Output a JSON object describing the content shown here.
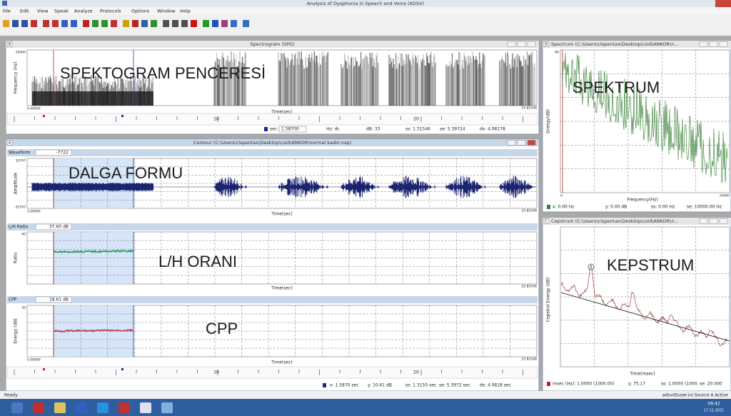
{
  "window": {
    "title": "Analysis of Dysphonia in Speech and Voice (ADSV)"
  },
  "menu": [
    "File",
    "Edit",
    "View",
    "Speak",
    "Analyze",
    "Protocols",
    "Options",
    "Window",
    "Help"
  ],
  "spectrogram": {
    "label": "B",
    "title": "Spectrogram (SPG)",
    "overlay": "SPEKTOGRAM PENCERESİ",
    "y_label": "Frequency (Hz)",
    "y_max": "10000",
    "x_start": "0.00000",
    "x_label": "Time(sec)",
    "x_end": "25.82548",
    "ruler": [
      "10",
      "20"
    ],
    "status": [
      "sec:",
      "1.58700",
      "Hz: dc",
      "dB: 33",
      "ss: 1.31546",
      "se: 5.39724",
      "ds: 4.08178"
    ]
  },
  "contour": {
    "label": "A",
    "title": "Contour (C:\\Users\\clspentax\\Desktop\\csid\\ANKOR\\normal kadın.nsp)",
    "panels": [
      {
        "name": "Waveform",
        "value": "-7722",
        "y_label": "Amplitude",
        "y_max": "32767",
        "y_min": "-32767",
        "x_start": "0.00000",
        "x_label": "Time(sec)",
        "x_end": "25.82548",
        "overlay": "DALGA FORMU"
      },
      {
        "name": "L/H Ratio",
        "value": "37.60 dB",
        "y_label": "Ratio",
        "y_max": "60",
        "x_label": "Time(sec)",
        "x_end": "25.82548",
        "overlay": "L/H ORANI"
      },
      {
        "name": "CPP",
        "value": "18.61 dB",
        "y_label": "Energy (dB)",
        "y_max": "20",
        "x_start": "0.00000",
        "x_label": "Time(sec)",
        "x_end": "25.82548",
        "overlay": "CPP"
      }
    ],
    "ruler": [
      "10",
      "20"
    ],
    "status": [
      "x: 1.5870 sec",
      "y: 10.61 dB",
      "ss: 1.3155 sec",
      "se: 5.3972 sec",
      "ds: 4.0818 sec"
    ]
  },
  "spectrum": {
    "label": "B",
    "title": "Spectrum (C:\\Users\\clspentax\\Desktop\\csid\\ANKOR\\n...",
    "y_max": "80",
    "y_label": "Energy(dB)",
    "x_start": "0",
    "x_label": "Frequency(Hz)",
    "x_end": "10000",
    "overlay": "SPEKTRUM",
    "status": [
      "x: 0.00 Hz",
      "y: 0.00 dB",
      "ss: 0.00 Hz",
      "se: 10000.00 Hz"
    ]
  },
  "cepstrum": {
    "label": "C",
    "title": "Cepstrum (C:\\Users\\clspentax\\Desktop\\csid\\ANKOR\\n...",
    "y_label": "Cepstral Energy (dB)",
    "x_label": "Time(msec)",
    "overlay": "KEPSTRUM",
    "status": [
      "msec (Hz): 1.0000 (1000.00)",
      "y: 75.17",
      "ss: 1.0000 (1000.",
      "se: 20.000"
    ]
  },
  "statusbar": {
    "left": "Ready",
    "right": "adsv4Suser.ini  Source A  Active"
  },
  "taskbar": {
    "time": "09:42",
    "date": "17.11.2021"
  }
}
